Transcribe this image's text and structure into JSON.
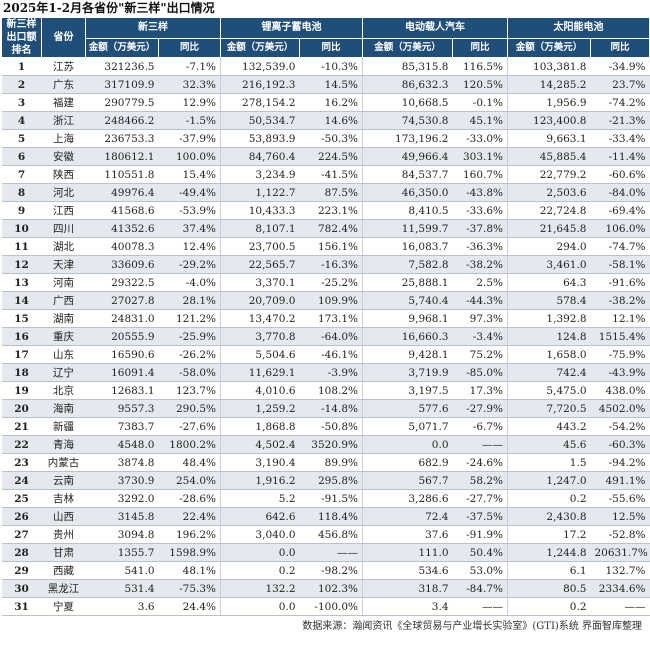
{
  "title": "2025年1-2月各省份\"新三样\"出口情况",
  "header": {
    "rank": "新三样出口额排名",
    "province": "省份",
    "groups": [
      "新三样",
      "锂离子蓄电池",
      "电动载人汽车",
      "太阳能电池"
    ],
    "amount": "金额（万美元）",
    "yoy": "同比"
  },
  "rows": [
    [
      "1",
      "江苏",
      "321236.5",
      "-7.1%",
      "132,539.0",
      "-10.3%",
      "85,315.8",
      "116.5%",
      "103,381.8",
      "-34.9%"
    ],
    [
      "2",
      "广东",
      "317109.9",
      "32.3%",
      "216,192.3",
      "14.5%",
      "86,632.3",
      "120.5%",
      "14,285.2",
      "23.7%"
    ],
    [
      "3",
      "福建",
      "290779.5",
      "12.9%",
      "278,154.2",
      "16.2%",
      "10,668.5",
      "-0.1%",
      "1,956.9",
      "-74.2%"
    ],
    [
      "4",
      "浙江",
      "248466.2",
      "-1.5%",
      "50,534.7",
      "14.6%",
      "74,530.8",
      "45.1%",
      "123,400.8",
      "-21.3%"
    ],
    [
      "5",
      "上海",
      "236753.3",
      "-37.9%",
      "53,893.9",
      "-50.3%",
      "173,196.2",
      "-33.0%",
      "9,663.1",
      "-33.4%"
    ],
    [
      "6",
      "安徽",
      "180612.1",
      "100.0%",
      "84,760.4",
      "224.5%",
      "49,966.4",
      "303.1%",
      "45,885.4",
      "-11.4%"
    ],
    [
      "7",
      "陕西",
      "110551.8",
      "15.4%",
      "3,234.9",
      "-41.5%",
      "84,537.7",
      "160.7%",
      "22,779.2",
      "-60.6%"
    ],
    [
      "8",
      "河北",
      "49976.4",
      "-49.4%",
      "1,122.7",
      "87.5%",
      "46,350.0",
      "-43.8%",
      "2,503.6",
      "-84.0%"
    ],
    [
      "9",
      "江西",
      "41568.6",
      "-53.9%",
      "10,433.3",
      "223.1%",
      "8,410.5",
      "-33.6%",
      "22,724.8",
      "-69.4%"
    ],
    [
      "10",
      "四川",
      "41352.6",
      "37.4%",
      "8,107.1",
      "782.4%",
      "11,599.7",
      "-37.8%",
      "21,645.8",
      "106.0%"
    ],
    [
      "11",
      "湖北",
      "40078.3",
      "12.4%",
      "23,700.5",
      "156.1%",
      "16,083.7",
      "-36.3%",
      "294.0",
      "-74.7%"
    ],
    [
      "12",
      "天津",
      "33609.6",
      "-29.2%",
      "22,565.7",
      "-16.3%",
      "7,582.8",
      "-38.2%",
      "3,461.0",
      "-58.1%"
    ],
    [
      "13",
      "河南",
      "29322.5",
      "-4.0%",
      "3,370.1",
      "-25.2%",
      "25,888.1",
      "2.5%",
      "64.3",
      "-91.6%"
    ],
    [
      "14",
      "广西",
      "27027.8",
      "28.1%",
      "20,709.0",
      "109.9%",
      "5,740.4",
      "-44.3%",
      "578.4",
      "-38.2%"
    ],
    [
      "15",
      "湖南",
      "24831.0",
      "121.2%",
      "13,470.2",
      "173.1%",
      "9,968.1",
      "97.3%",
      "1,392.8",
      "12.1%"
    ],
    [
      "16",
      "重庆",
      "20555.9",
      "-25.9%",
      "3,770.8",
      "-64.0%",
      "16,660.3",
      "-3.4%",
      "124.8",
      "1515.4%"
    ],
    [
      "17",
      "山东",
      "16590.6",
      "-26.2%",
      "5,504.6",
      "-46.1%",
      "9,428.1",
      "75.2%",
      "1,658.0",
      "-75.9%"
    ],
    [
      "18",
      "辽宁",
      "16091.4",
      "-58.0%",
      "11,629.1",
      "-3.9%",
      "3,719.9",
      "-85.0%",
      "742.4",
      "-43.9%"
    ],
    [
      "19",
      "北京",
      "12683.1",
      "123.7%",
      "4,010.6",
      "108.2%",
      "3,197.5",
      "17.3%",
      "5,475.0",
      "438.0%"
    ],
    [
      "20",
      "海南",
      "9557.3",
      "290.5%",
      "1,259.2",
      "-14.8%",
      "577.6",
      "-27.9%",
      "7,720.5",
      "4502.0%"
    ],
    [
      "21",
      "新疆",
      "7383.7",
      "-27.6%",
      "1,868.8",
      "-50.8%",
      "5,071.7",
      "-6.7%",
      "443.2",
      "-54.2%"
    ],
    [
      "22",
      "青海",
      "4548.0",
      "1800.2%",
      "4,502.4",
      "3520.9%",
      "0.0",
      "——",
      "45.6",
      "-60.3%"
    ],
    [
      "23",
      "内蒙古",
      "3874.8",
      "48.4%",
      "3,190.4",
      "89.9%",
      "682.9",
      "-24.6%",
      "1.5",
      "-94.2%"
    ],
    [
      "24",
      "云南",
      "3730.9",
      "254.0%",
      "1,916.2",
      "295.8%",
      "567.7",
      "58.2%",
      "1,247.0",
      "491.1%"
    ],
    [
      "25",
      "吉林",
      "3292.0",
      "-28.6%",
      "5.2",
      "-91.5%",
      "3,286.6",
      "-27.7%",
      "0.2",
      "-55.6%"
    ],
    [
      "26",
      "山西",
      "3145.8",
      "22.4%",
      "642.6",
      "118.4%",
      "72.4",
      "-37.5%",
      "2,430.8",
      "12.5%"
    ],
    [
      "27",
      "贵州",
      "3094.8",
      "196.2%",
      "3,040.0",
      "456.8%",
      "37.6",
      "-91.9%",
      "17.2",
      "-52.8%"
    ],
    [
      "28",
      "甘肃",
      "1355.7",
      "1598.9%",
      "0.0",
      "——",
      "111.0",
      "50.4%",
      "1,244.8",
      "20631.7%"
    ],
    [
      "29",
      "西藏",
      "541.0",
      "48.1%",
      "0.2",
      "-98.2%",
      "534.6",
      "53.0%",
      "6.1",
      "132.7%"
    ],
    [
      "30",
      "黑龙江",
      "531.4",
      "-75.3%",
      "132.2",
      "102.3%",
      "318.7",
      "-84.7%",
      "80.5",
      "2334.6%"
    ],
    [
      "31",
      "宁夏",
      "3.6",
      "24.4%",
      "0.0",
      "-100.0%",
      "3.4",
      "——",
      "0.2",
      "——"
    ]
  ],
  "footer": "数据来源：瀚闻资讯《全球贸易与产业增长实验室》(GTI)系统  界面智库整理"
}
